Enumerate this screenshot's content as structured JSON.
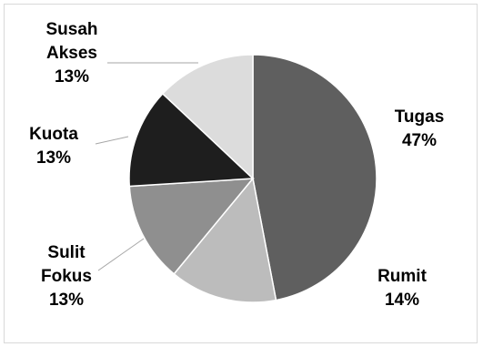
{
  "chart_data": {
    "type": "pie",
    "slices": [
      {
        "label": "Tugas",
        "label_lines": [
          "Tugas"
        ],
        "value": 47,
        "value_text": "47%",
        "color": "#5f5f5f"
      },
      {
        "label": "Rumit",
        "label_lines": [
          "Rumit"
        ],
        "value": 14,
        "value_text": "14%",
        "color": "#bcbcbc"
      },
      {
        "label": "Sulit Fokus",
        "label_lines": [
          "Sulit",
          "Fokus"
        ],
        "value": 13,
        "value_text": "13%",
        "color": "#8f8f8f"
      },
      {
        "label": "Kuota",
        "label_lines": [
          "Kuota"
        ],
        "value": 13,
        "value_text": "13%",
        "color": "#1e1e1e"
      },
      {
        "label": "Susah Akses",
        "label_lines": [
          "Susah",
          "Akses"
        ],
        "value": 13,
        "value_text": "13%",
        "color": "#dcdcdc"
      }
    ],
    "start_angle_deg": 0,
    "direction": "clockwise",
    "slice_border_color": "#ffffff",
    "leader_line_color": "#a6a6a6",
    "legend": "none",
    "title": ""
  }
}
